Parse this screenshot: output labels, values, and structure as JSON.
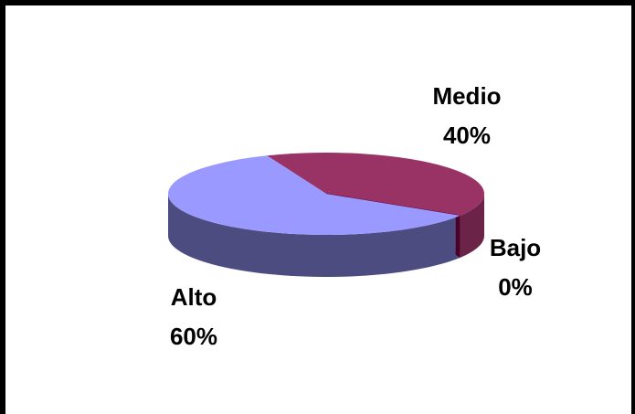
{
  "chart_data": {
    "type": "pie",
    "style": "3d",
    "categories": [
      "Medio",
      "Bajo",
      "Alto"
    ],
    "values": [
      40,
      0,
      60
    ],
    "value_labels": [
      "40%",
      "0%",
      "60%"
    ],
    "colors": {
      "Medio": "#993366",
      "Bajo": "#660033",
      "Alto": "#9999FF"
    },
    "side_colors": {
      "Medio": "#6B2447",
      "Bajo": "#4A0024",
      "Alto": "#4C4C80"
    },
    "title": "",
    "legend": "none"
  }
}
